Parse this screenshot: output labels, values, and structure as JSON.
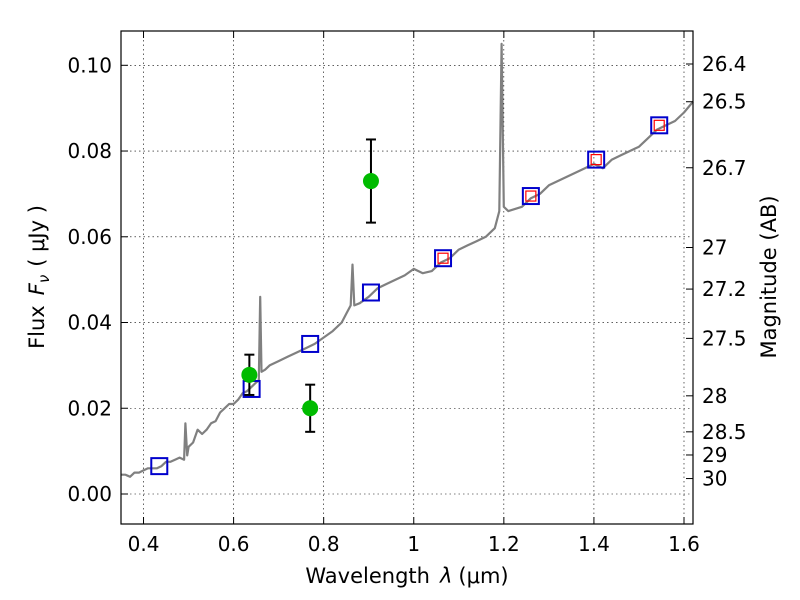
{
  "chart_data": {
    "type": "scatter",
    "xlabel_text": "Wavelength",
    "xlabel_symbol": "λ",
    "xlabel_unit": "(μm)",
    "ylabel_text": "Flux",
    "ylabel_symbol": "F",
    "ylabel_sub": "ν",
    "ylabel_unit": "( μJy )",
    "y2label": "Magnitude (AB)",
    "xlim": [
      0.35,
      1.62
    ],
    "ylim": [
      -0.007,
      0.108
    ],
    "x_ticks": [
      {
        "value": 0.4,
        "label": "0.4"
      },
      {
        "value": 0.6,
        "label": "0.6"
      },
      {
        "value": 0.8,
        "label": "0.8"
      },
      {
        "value": 1.0,
        "label": "1"
      },
      {
        "value": 1.2,
        "label": "1.2"
      },
      {
        "value": 1.4,
        "label": "1.4"
      },
      {
        "value": 1.6,
        "label": "1.6"
      }
    ],
    "y_ticks": [
      {
        "value": 0.0,
        "label": "0.00"
      },
      {
        "value": 0.02,
        "label": "0.02"
      },
      {
        "value": 0.04,
        "label": "0.04"
      },
      {
        "value": 0.06,
        "label": "0.06"
      },
      {
        "value": 0.08,
        "label": "0.08"
      },
      {
        "value": 0.1,
        "label": "0.10"
      }
    ],
    "y2_ticks": [
      {
        "flux": 0.1003,
        "label": "26.4"
      },
      {
        "flux": 0.0915,
        "label": "26.5"
      },
      {
        "flux": 0.0761,
        "label": "26.7"
      },
      {
        "flux": 0.0575,
        "label": "27"
      },
      {
        "flux": 0.0478,
        "label": "27.2"
      },
      {
        "flux": 0.0363,
        "label": "27.5"
      },
      {
        "flux": 0.0229,
        "label": "28"
      },
      {
        "flux": 0.0145,
        "label": "28.5"
      },
      {
        "flux": 0.0091,
        "label": "29"
      },
      {
        "flux": 0.0036,
        "label": "30"
      }
    ],
    "grid": true,
    "colors": {
      "spectrum": "#808080",
      "observed": "#00bb00",
      "model_square": "#0000cc",
      "model_inner": "#ff0000",
      "errorbar": "#000000"
    },
    "spectrum": [
      [
        0.35,
        0.0045
      ],
      [
        0.36,
        0.0045
      ],
      [
        0.37,
        0.004
      ],
      [
        0.38,
        0.005
      ],
      [
        0.39,
        0.005
      ],
      [
        0.4,
        0.0055
      ],
      [
        0.41,
        0.006
      ],
      [
        0.42,
        0.006
      ],
      [
        0.43,
        0.006
      ],
      [
        0.44,
        0.0065
      ],
      [
        0.45,
        0.0075
      ],
      [
        0.46,
        0.0075
      ],
      [
        0.47,
        0.008
      ],
      [
        0.48,
        0.0085
      ],
      [
        0.49,
        0.008
      ],
      [
        0.493,
        0.0165
      ],
      [
        0.497,
        0.009
      ],
      [
        0.5,
        0.011
      ],
      [
        0.51,
        0.012
      ],
      [
        0.52,
        0.015
      ],
      [
        0.53,
        0.014
      ],
      [
        0.54,
        0.015
      ],
      [
        0.55,
        0.0165
      ],
      [
        0.56,
        0.017
      ],
      [
        0.57,
        0.019
      ],
      [
        0.58,
        0.02
      ],
      [
        0.59,
        0.021
      ],
      [
        0.6,
        0.021
      ],
      [
        0.61,
        0.022
      ],
      [
        0.62,
        0.0235
      ],
      [
        0.63,
        0.024
      ],
      [
        0.64,
        0.025
      ],
      [
        0.65,
        0.026
      ],
      [
        0.656,
        0.0265
      ],
      [
        0.659,
        0.046
      ],
      [
        0.662,
        0.0285
      ],
      [
        0.67,
        0.029
      ],
      [
        0.68,
        0.03
      ],
      [
        0.7,
        0.031
      ],
      [
        0.72,
        0.032
      ],
      [
        0.74,
        0.033
      ],
      [
        0.76,
        0.034
      ],
      [
        0.78,
        0.035
      ],
      [
        0.8,
        0.0365
      ],
      [
        0.82,
        0.038
      ],
      [
        0.84,
        0.04
      ],
      [
        0.85,
        0.042
      ],
      [
        0.86,
        0.044
      ],
      [
        0.864,
        0.0535
      ],
      [
        0.868,
        0.044
      ],
      [
        0.88,
        0.0445
      ],
      [
        0.9,
        0.046
      ],
      [
        0.92,
        0.048
      ],
      [
        0.94,
        0.049
      ],
      [
        0.96,
        0.05
      ],
      [
        0.98,
        0.051
      ],
      [
        1.0,
        0.0525
      ],
      [
        1.02,
        0.0515
      ],
      [
        1.04,
        0.052
      ],
      [
        1.06,
        0.054
      ],
      [
        1.08,
        0.055
      ],
      [
        1.1,
        0.057
      ],
      [
        1.12,
        0.058
      ],
      [
        1.14,
        0.059
      ],
      [
        1.16,
        0.06
      ],
      [
        1.18,
        0.062
      ],
      [
        1.19,
        0.066
      ],
      [
        1.195,
        0.105
      ],
      [
        1.2,
        0.067
      ],
      [
        1.21,
        0.066
      ],
      [
        1.24,
        0.067
      ],
      [
        1.26,
        0.069
      ],
      [
        1.28,
        0.07
      ],
      [
        1.3,
        0.072
      ],
      [
        1.32,
        0.073
      ],
      [
        1.34,
        0.074
      ],
      [
        1.36,
        0.075
      ],
      [
        1.38,
        0.076
      ],
      [
        1.4,
        0.077
      ],
      [
        1.42,
        0.076
      ],
      [
        1.44,
        0.078
      ],
      [
        1.46,
        0.079
      ],
      [
        1.48,
        0.08
      ],
      [
        1.5,
        0.081
      ],
      [
        1.52,
        0.083
      ],
      [
        1.54,
        0.085
      ],
      [
        1.56,
        0.086
      ],
      [
        1.58,
        0.087
      ],
      [
        1.6,
        0.089
      ],
      [
        1.62,
        0.0915
      ]
    ],
    "model_points": [
      {
        "x": 0.435,
        "y": 0.0065
      },
      {
        "x": 0.64,
        "y": 0.0245
      },
      {
        "x": 0.77,
        "y": 0.035
      },
      {
        "x": 0.905,
        "y": 0.047
      },
      {
        "x": 1.065,
        "y": 0.055
      },
      {
        "x": 1.26,
        "y": 0.0695
      },
      {
        "x": 1.405,
        "y": 0.078
      },
      {
        "x": 1.545,
        "y": 0.086
      }
    ],
    "model_inner_points": [
      {
        "x": 1.065,
        "y": 0.055
      },
      {
        "x": 1.26,
        "y": 0.0695
      },
      {
        "x": 1.405,
        "y": 0.078
      },
      {
        "x": 1.545,
        "y": 0.086
      }
    ],
    "observed_points": [
      {
        "x": 0.635,
        "y": 0.0278,
        "err": 0.0047
      },
      {
        "x": 0.77,
        "y": 0.02,
        "err": 0.0055
      },
      {
        "x": 0.905,
        "y": 0.073,
        "err": 0.0097
      }
    ]
  }
}
